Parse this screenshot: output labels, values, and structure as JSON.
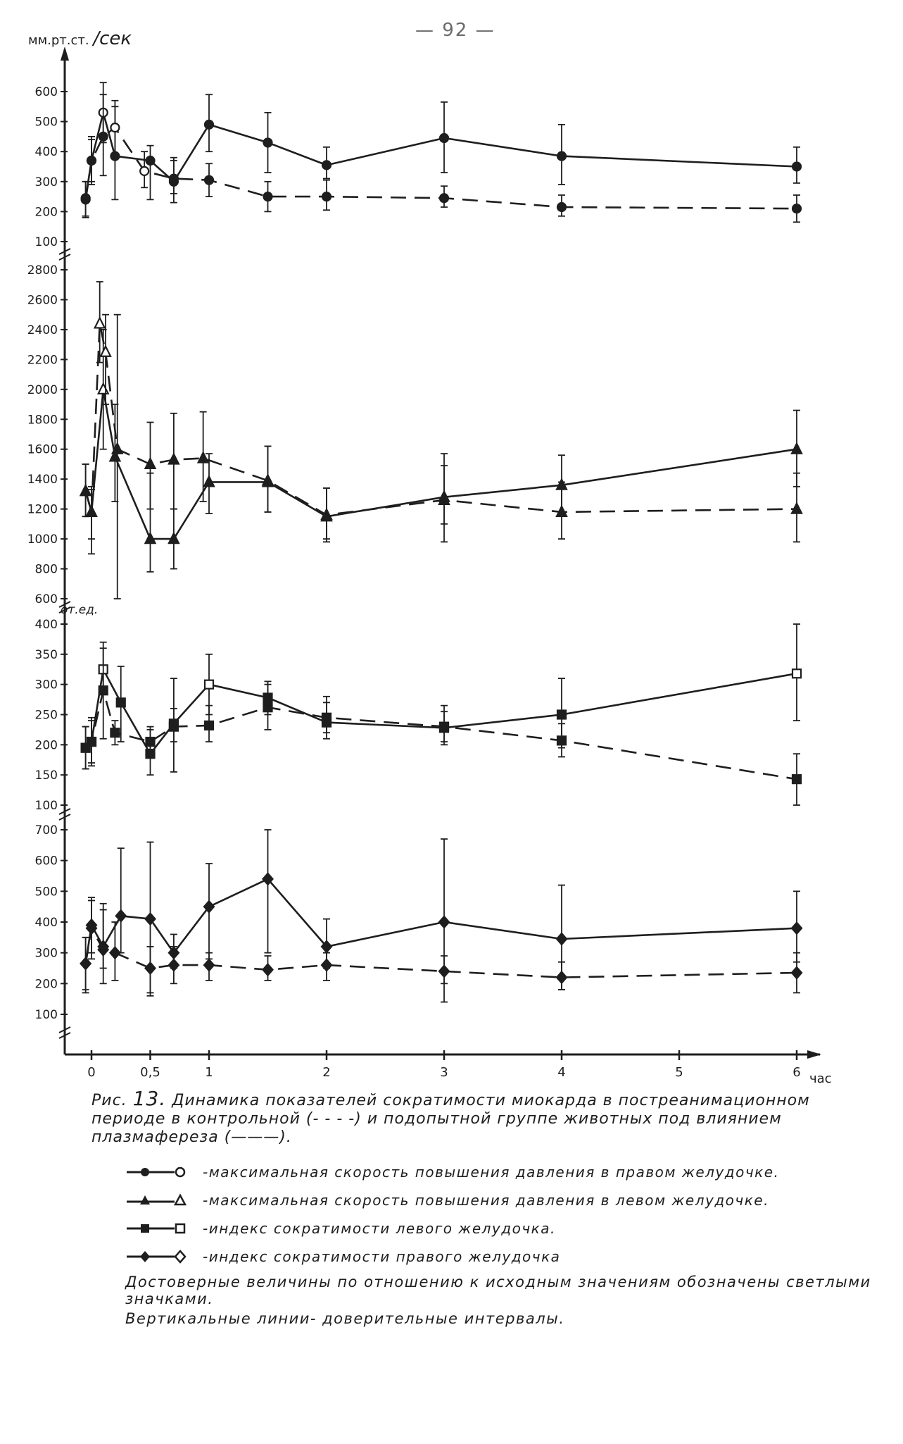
{
  "page_number": "— 92 —",
  "unit_top": {
    "small": "мм.рт.ст.",
    "big": "/сек"
  },
  "unit_od": "от.ед.",
  "x_unit": "час",
  "chart_data": [
    {
      "type": "line",
      "panel": "right-ventricle-max-pressure-rise-rate",
      "title": "",
      "ylabel": "мм.рт.ст. /сек",
      "xlabel": "час",
      "xlim": [
        -0.2,
        6.1
      ],
      "ylim": [
        100,
        600
      ],
      "yticks": [
        "100",
        "200",
        "300",
        "400",
        "500",
        "600"
      ],
      "marker": "circle",
      "series": [
        {
          "name": "",
          "linestyle": "solid",
          "x": [
            -0.05,
            0,
            0.1,
            0.2,
            0.5,
            0.7,
            1,
            1.5,
            2,
            3,
            4,
            6
          ],
          "y": [
            245,
            370,
            530,
            385,
            370,
            300,
            490,
            430,
            355,
            445,
            385,
            350
          ],
          "lo": [
            185,
            290,
            430,
            240,
            240,
            230,
            400,
            330,
            310,
            330,
            290,
            295
          ],
          "hi": [
            300,
            450,
            630,
            550,
            420,
            380,
            590,
            530,
            415,
            565,
            490,
            415
          ],
          "open": [
            false,
            false,
            true,
            false,
            false,
            false,
            false,
            false,
            false,
            false,
            false,
            false
          ]
        },
        {
          "name": "",
          "linestyle": "dashed",
          "x": [
            -0.05,
            0,
            0.1,
            0.2,
            0.45,
            0.7,
            1,
            1.5,
            2,
            3,
            4,
            6
          ],
          "y": [
            240,
            370,
            450,
            480,
            335,
            310,
            305,
            250,
            250,
            245,
            215,
            210
          ],
          "lo": [
            180,
            300,
            320,
            390,
            280,
            260,
            250,
            200,
            205,
            215,
            185,
            165
          ],
          "hi": [
            300,
            440,
            590,
            570,
            400,
            370,
            360,
            300,
            305,
            285,
            255,
            255
          ],
          "open": [
            false,
            false,
            false,
            true,
            true,
            false,
            false,
            false,
            false,
            false,
            false,
            false
          ]
        }
      ]
    },
    {
      "type": "line",
      "panel": "left-ventricle-max-pressure-rise-rate",
      "title": "",
      "ylabel": "",
      "xlabel": "час",
      "xlim": [
        -0.2,
        6.1
      ],
      "ylim": [
        600,
        2800
      ],
      "yticks": [
        "600",
        "800",
        "1000",
        "1200",
        "1400",
        "1600",
        "1800",
        "2000",
        "2200",
        "2400",
        "2600",
        "2800"
      ],
      "marker": "triangle",
      "series": [
        {
          "name": "",
          "linestyle": "solid",
          "x": [
            -0.05,
            0,
            0.1,
            0.2,
            0.5,
            0.7,
            1,
            1.5,
            2,
            3,
            4,
            6
          ],
          "y": [
            1320,
            1180,
            2000,
            1550,
            1000,
            1000,
            1380,
            1380,
            1150,
            1280,
            1360,
            1600
          ],
          "lo": [
            1150,
            900,
            1600,
            1250,
            780,
            800,
            1170,
            1180,
            980,
            980,
            1180,
            1350
          ],
          "hi": [
            1500,
            1330,
            2400,
            1900,
            1440,
            1200,
            1570,
            1620,
            1340,
            1570,
            1560,
            1860
          ],
          "open": [
            false,
            false,
            true,
            false,
            false,
            false,
            false,
            false,
            false,
            false,
            false,
            false
          ]
        },
        {
          "name": "",
          "linestyle": "dashed",
          "x": [
            -0.05,
            0,
            0.07,
            0.12,
            0.22,
            0.5,
            0.7,
            0.95,
            1.5,
            2,
            3,
            4,
            6
          ],
          "y": [
            1320,
            1180,
            2440,
            2250,
            1600,
            1500,
            1530,
            1540,
            1390,
            1160,
            1260,
            1180,
            1200
          ],
          "lo": [
            1150,
            1000,
            2180,
            1900,
            600,
            1200,
            1200,
            1250,
            1180,
            1000,
            1100,
            1000,
            980
          ],
          "hi": [
            1500,
            1350,
            2720,
            2500,
            2500,
            1780,
            1840,
            1850,
            1620,
            1340,
            1490,
            1380,
            1440
          ],
          "open": [
            false,
            false,
            true,
            true,
            false,
            false,
            false,
            false,
            false,
            false,
            false,
            false,
            false
          ]
        }
      ]
    },
    {
      "type": "line",
      "panel": "left-ventricle-contractility-index",
      "title": "",
      "ylabel": "от.ед.",
      "xlabel": "час",
      "xlim": [
        -0.2,
        6.1
      ],
      "ylim": [
        100,
        400
      ],
      "yticks": [
        "100",
        "150",
        "200",
        "250",
        "300",
        "350",
        "400"
      ],
      "marker": "square",
      "series": [
        {
          "name": "",
          "linestyle": "solid",
          "x": [
            -0.05,
            0,
            0.1,
            0.25,
            0.5,
            0.7,
            1,
            1.5,
            2,
            3,
            4,
            6
          ],
          "y": [
            195,
            205,
            325,
            270,
            185,
            235,
            300,
            278,
            237,
            228,
            250,
            318
          ],
          "lo": [
            160,
            165,
            285,
            205,
            150,
            155,
            250,
            250,
            210,
            200,
            195,
            240
          ],
          "hi": [
            230,
            245,
            370,
            330,
            225,
            310,
            350,
            305,
            280,
            265,
            310,
            400
          ],
          "open": [
            false,
            false,
            true,
            false,
            false,
            false,
            true,
            false,
            false,
            false,
            false,
            true
          ]
        },
        {
          "name": "",
          "linestyle": "dashed",
          "x": [
            -0.05,
            0,
            0.1,
            0.2,
            0.5,
            0.7,
            1,
            1.5,
            2,
            3,
            4,
            6
          ],
          "y": [
            195,
            205,
            290,
            220,
            205,
            230,
            232,
            262,
            245,
            230,
            207,
            143
          ],
          "lo": [
            160,
            170,
            210,
            200,
            180,
            205,
            205,
            225,
            220,
            205,
            180,
            100
          ],
          "hi": [
            230,
            240,
            360,
            240,
            230,
            260,
            265,
            300,
            270,
            255,
            235,
            185
          ],
          "open": [
            false,
            false,
            false,
            false,
            false,
            false,
            false,
            false,
            false,
            false,
            false,
            false
          ]
        }
      ]
    },
    {
      "type": "line",
      "panel": "right-ventricle-contractility-index",
      "title": "",
      "ylabel": "",
      "xlabel": "час",
      "xlim": [
        -0.2,
        6.1
      ],
      "ylim": [
        100,
        700
      ],
      "yticks": [
        "100",
        "200",
        "300",
        "400",
        "500",
        "600",
        "700"
      ],
      "marker": "diamond",
      "series": [
        {
          "name": "",
          "linestyle": "solid",
          "x": [
            -0.05,
            0,
            0.1,
            0.25,
            0.5,
            0.7,
            1,
            1.5,
            2,
            3,
            4,
            6
          ],
          "y": [
            265,
            390,
            320,
            420,
            410,
            300,
            450,
            540,
            320,
            400,
            345,
            380
          ],
          "lo": [
            170,
            300,
            250,
            300,
            160,
            250,
            280,
            300,
            250,
            140,
            180,
            270
          ],
          "hi": [
            350,
            480,
            460,
            640,
            660,
            360,
            590,
            700,
            410,
            670,
            520,
            500
          ],
          "open": [
            false,
            false,
            false,
            false,
            false,
            false,
            false,
            false,
            false,
            false,
            false,
            false
          ]
        },
        {
          "name": "",
          "linestyle": "dashed",
          "x": [
            -0.05,
            0,
            0.1,
            0.2,
            0.5,
            0.7,
            1,
            1.5,
            2,
            3,
            4,
            6
          ],
          "y": [
            265,
            380,
            310,
            300,
            250,
            260,
            260,
            245,
            260,
            240,
            220,
            235
          ],
          "lo": [
            180,
            280,
            200,
            210,
            170,
            200,
            210,
            210,
            210,
            200,
            180,
            170
          ],
          "hi": [
            350,
            470,
            440,
            400,
            320,
            320,
            300,
            290,
            300,
            290,
            270,
            300
          ],
          "open": [
            false,
            false,
            false,
            false,
            false,
            false,
            false,
            false,
            false,
            false,
            false,
            false
          ]
        }
      ]
    }
  ],
  "x_axis": {
    "ticks": [
      {
        "v": 0,
        "label": "0"
      },
      {
        "v": 0.5,
        "label": "0,5"
      },
      {
        "v": 1,
        "label": "1"
      },
      {
        "v": 2,
        "label": "2"
      },
      {
        "v": 3,
        "label": "3"
      },
      {
        "v": 4,
        "label": "4"
      },
      {
        "v": 5,
        "label": "5"
      },
      {
        "v": 6,
        "label": "6"
      }
    ]
  },
  "caption": {
    "prefix": "Рис.",
    "number": "13.",
    "text": "Динамика показателей сократимости миокарда в постреанимационном периоде в контрольной (- - - -) и подопытной группе животных под влиянием плазмафереза (———)."
  },
  "legend": [
    {
      "marker": "circle",
      "text": "-максимальная скорость повышения давления в правом желудочке."
    },
    {
      "marker": "triangle",
      "text": "-максимальная скорость повышения давления в левом желудочке."
    },
    {
      "marker": "square",
      "text": "-индекс сократимости левого желудочка."
    },
    {
      "marker": "diamond",
      "text": "-индекс сократимости правого желудочка"
    }
  ],
  "notes": [
    "Достоверные величины по отношению к исходным значениям обозначены светлыми значками.",
    "Вертикальные линии- доверительные интервалы."
  ]
}
